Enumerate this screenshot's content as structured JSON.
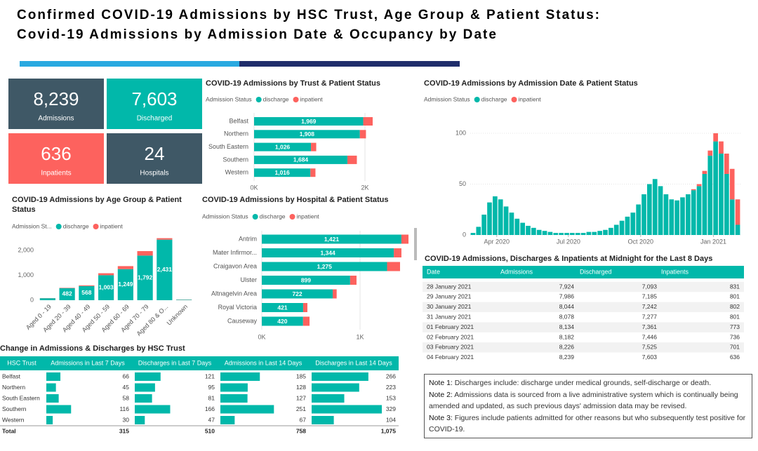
{
  "header": {
    "title_line1": "Confirmed COVID-19 Admissions by HSC Trust, Age Group & Patient Status:",
    "title_line2": "Covid-19 Admissions by Admission Date & Occupancy by Date"
  },
  "kpis": [
    {
      "value": "8,239",
      "label": "Admissions"
    },
    {
      "value": "7,603",
      "label": "Discharged"
    },
    {
      "value": "636",
      "label": "Inpatients"
    },
    {
      "value": "24",
      "label": "Hospitals"
    }
  ],
  "chart_data": [
    {
      "type": "bar",
      "orientation": "horizontal",
      "title": "COVID-19 Admissions by Trust & Patient Status",
      "legend_title": "Admission Status",
      "categories": [
        "Belfast",
        "Northern",
        "South Eastern",
        "Southern",
        "Western"
      ],
      "series": [
        {
          "name": "discharge",
          "color": "#01b8aa",
          "values": [
            1969,
            1908,
            1026,
            1684,
            1016
          ],
          "value_labels": [
            "1,969",
            "1,908",
            "1,026",
            "1,684",
            "1,016"
          ]
        },
        {
          "name": "inpatient",
          "color": "#fd625e",
          "values": [
            170,
            110,
            95,
            170,
            91
          ]
        }
      ],
      "xlim": [
        0,
        2200
      ],
      "xticks": [
        {
          "value": 0,
          "label": "0K"
        },
        {
          "value": 2000,
          "label": "2K"
        }
      ],
      "grid": true
    },
    {
      "type": "bar",
      "orientation": "vertical",
      "title": "COVID-19 Admissions by Admission Date & Patient Status",
      "legend_title": "Admission Status",
      "categories": [
        null,
        null,
        null,
        null,
        null,
        null,
        null,
        null,
        null,
        null,
        null,
        null,
        null,
        null,
        null,
        null,
        null,
        null,
        null,
        null,
        null,
        null,
        null,
        null,
        null,
        null,
        null,
        null,
        null,
        null,
        null,
        null,
        null,
        null,
        null,
        null,
        null,
        null,
        null,
        null,
        null,
        null,
        null,
        null,
        null,
        null,
        null,
        null,
        null
      ],
      "series": [
        {
          "name": "discharge",
          "color": "#01b8aa",
          "values": [
            2,
            8,
            20,
            32,
            38,
            35,
            28,
            22,
            16,
            12,
            9,
            7,
            5,
            4,
            3,
            2,
            2,
            2,
            2,
            2,
            2,
            3,
            3,
            4,
            5,
            7,
            10,
            14,
            18,
            22,
            30,
            40,
            50,
            55,
            48,
            40,
            35,
            34,
            37,
            40,
            44,
            48,
            60,
            78,
            92,
            80,
            60,
            35,
            10
          ]
        },
        {
          "name": "inpatient",
          "color": "#fd625e",
          "values": [
            0,
            0,
            0,
            0,
            0,
            0,
            0,
            0,
            0,
            0,
            0,
            0,
            0,
            0,
            0,
            0,
            0,
            0,
            0,
            0,
            0,
            0,
            0,
            0,
            0,
            0,
            0,
            0,
            0,
            0,
            0,
            0,
            0,
            0,
            0,
            0,
            0,
            0,
            0,
            0,
            1,
            2,
            3,
            5,
            8,
            12,
            20,
            30,
            25
          ]
        }
      ],
      "xticks": [
        {
          "value": 4.3,
          "label": "Apr 2020"
        },
        {
          "value": 17.3,
          "label": "Jul 2020"
        },
        {
          "value": 30.4,
          "label": "Oct 2020"
        },
        {
          "value": 43.6,
          "label": "Jan 2021"
        }
      ],
      "ylim": [
        0,
        110
      ],
      "yticks": [
        0,
        50,
        100
      ],
      "grid": true
    },
    {
      "type": "bar",
      "orientation": "vertical",
      "title": "COVID-19 Admissions by Age Group & Patient Status",
      "legend_title": "Admission St...",
      "categories": [
        "Aged 0 - 19",
        "Aged 20 - 39",
        "Aged 40 - 49",
        "Aged 50 - 59",
        "Aged 60 - 69",
        "Aged 70 - 79",
        "Aged 80 & O...",
        "Unknown"
      ],
      "series": [
        {
          "name": "discharge",
          "color": "#01b8aa",
          "values": [
            80,
            482,
            568,
            1003,
            1249,
            1792,
            2431,
            20
          ],
          "value_labels": [
            null,
            "482",
            "568",
            "1,003",
            "1,249",
            "1,792",
            "2,431",
            null
          ]
        },
        {
          "name": "inpatient",
          "color": "#fd625e",
          "values": [
            5,
            15,
            30,
            80,
            120,
            180,
            60,
            6
          ]
        }
      ],
      "ylim": [
        0,
        2600
      ],
      "yticks": [
        0,
        {
          "value": 1000,
          "label": "1,000"
        },
        {
          "value": 2000,
          "label": "2,000"
        }
      ],
      "grid": false
    },
    {
      "type": "bar",
      "orientation": "horizontal",
      "title": "COVID-19 Admissions by Hospital & Patient Status",
      "legend_title": "Admission Status",
      "categories": [
        "Antrim",
        "Mater Infirmor...",
        "Craigavon Area",
        "Ulster",
        "Altnagelvin Area",
        "Royal Victoria",
        "Causeway"
      ],
      "series": [
        {
          "name": "discharge",
          "color": "#01b8aa",
          "values": [
            1421,
            1344,
            1275,
            899,
            722,
            421,
            420
          ],
          "value_labels": [
            "1,421",
            "1,344",
            "1,275",
            "899",
            "722",
            "421",
            "420"
          ]
        },
        {
          "name": "inpatient",
          "color": "#fd625e",
          "values": [
            72,
            77,
            132,
            65,
            40,
            43,
            66
          ]
        }
      ],
      "xlim": [
        0,
        1500
      ],
      "xticks": [
        {
          "value": 0,
          "label": "0K"
        },
        {
          "value": 1000,
          "label": "1K"
        }
      ],
      "grid": true
    }
  ],
  "daily_table": {
    "title": "COVID-19 Admissions, Discharges & Inpatients at Midnight for the Last 8 Days",
    "columns": [
      "Date",
      "Admissions",
      "Discharged",
      "Inpatients"
    ],
    "rows": [
      [
        "28 January 2021",
        "7,924",
        "7,093",
        "831"
      ],
      [
        "29 January 2021",
        "7,986",
        "7,185",
        "801"
      ],
      [
        "30 January 2021",
        "8,044",
        "7,242",
        "802"
      ],
      [
        "31 January 2021",
        "8,078",
        "7,277",
        "801"
      ],
      [
        "01 February 2021",
        "8,134",
        "7,361",
        "773"
      ],
      [
        "02 February 2021",
        "8,182",
        "7,446",
        "736"
      ],
      [
        "03 February 2021",
        "8,226",
        "7,525",
        "701"
      ],
      [
        "04 February 2021",
        "8,239",
        "7,603",
        "636"
      ]
    ]
  },
  "trust_table": {
    "title": "Change in Admissions & Discharges by HSC Trust",
    "columns": [
      "HSC Trust",
      "Admissions in Last 7 Days",
      "Discharges in Last 7 Days",
      "Admissions in Last 14 Days",
      "Discharges in Last 14 Days"
    ],
    "rows": [
      [
        "Belfast",
        66,
        121,
        185,
        266
      ],
      [
        "Northern",
        45,
        95,
        128,
        223
      ],
      [
        "South Eastern",
        58,
        81,
        127,
        153
      ],
      [
        "Southern",
        116,
        166,
        251,
        329
      ],
      [
        "Western",
        30,
        47,
        67,
        104
      ]
    ],
    "total": [
      "Total",
      "315",
      "510",
      "758",
      "1,075"
    ]
  },
  "notes": [
    {
      "label": "Note 1:",
      "text": "Discharges include: discharge under medical grounds, self-discharge or death."
    },
    {
      "label": "Note 2:",
      "text": "Admissions data is sourced from a live administrative system which is continually being amended and updated, as such previous days' admission data may be revised."
    },
    {
      "label": "Note 3:",
      "text": "Figures include patients admitted for other reasons but who subsequently test positive for COVID-19."
    }
  ]
}
